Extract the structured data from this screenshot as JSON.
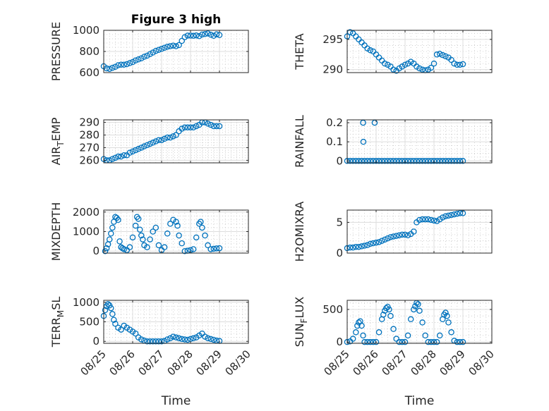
{
  "chart_data": [
    {
      "type": "scatter",
      "title": "Figure 3 high",
      "ylabel": [
        "PRESSURE"
      ],
      "xlabel": "",
      "xlim": [
        0,
        5
      ],
      "ylim": [
        600,
        1000
      ],
      "yticks": [
        600,
        800,
        1000
      ],
      "xticks": [
        0,
        1,
        2,
        3,
        4,
        5
      ],
      "xtick_labels": [],
      "grid": true,
      "color": "#0072BD",
      "series": [
        {
          "x": [
            0.0,
            0.1,
            0.2,
            0.3,
            0.4,
            0.5,
            0.6,
            0.7,
            0.8,
            0.9,
            1.0,
            1.1,
            1.2,
            1.3,
            1.4,
            1.5,
            1.6,
            1.7,
            1.8,
            1.9,
            2.0,
            2.1,
            2.2,
            2.3,
            2.4,
            2.5,
            2.6,
            2.7,
            2.8,
            2.9,
            3.0,
            3.1,
            3.2,
            3.3,
            3.4,
            3.5,
            3.6,
            3.7,
            3.8,
            3.9,
            4.0
          ],
          "y": [
            660,
            640,
            635,
            645,
            655,
            670,
            675,
            675,
            680,
            690,
            700,
            715,
            725,
            735,
            750,
            760,
            775,
            790,
            805,
            815,
            825,
            835,
            845,
            850,
            855,
            850,
            860,
            900,
            935,
            950,
            950,
            948,
            952,
            945,
            960,
            965,
            970,
            958,
            948,
            962,
            955
          ]
        }
      ]
    },
    {
      "type": "scatter",
      "title": "",
      "ylabel": [
        "THETA"
      ],
      "xlabel": "",
      "xlim": [
        0,
        5
      ],
      "ylim": [
        289.5,
        296.5
      ],
      "yticks": [
        290,
        295
      ],
      "xticks": [
        0,
        1,
        2,
        3,
        4,
        5
      ],
      "xtick_labels": [],
      "grid": true,
      "color": "#0072BD",
      "series": [
        {
          "x": [
            0.0,
            0.1,
            0.2,
            0.3,
            0.4,
            0.5,
            0.6,
            0.7,
            0.8,
            0.9,
            1.0,
            1.1,
            1.2,
            1.3,
            1.4,
            1.5,
            1.6,
            1.7,
            1.8,
            1.9,
            2.0,
            2.1,
            2.2,
            2.3,
            2.4,
            2.5,
            2.6,
            2.7,
            2.8,
            2.9,
            3.0,
            3.1,
            3.2,
            3.3,
            3.4,
            3.5,
            3.6,
            3.7,
            3.8,
            3.9,
            4.0
          ],
          "y": [
            295.5,
            296.2,
            296.0,
            295.5,
            295.0,
            294.5,
            294.0,
            293.5,
            293.2,
            293.0,
            292.5,
            292.0,
            291.5,
            291.0,
            290.8,
            290.5,
            290.0,
            289.8,
            290.2,
            290.5,
            290.8,
            291.0,
            291.3,
            291.0,
            290.5,
            290.2,
            290.0,
            289.9,
            290.0,
            290.3,
            291.0,
            292.5,
            292.6,
            292.4,
            292.2,
            292.0,
            291.6,
            291.0,
            290.8,
            290.8,
            290.9
          ]
        }
      ]
    },
    {
      "type": "scatter",
      "title": "",
      "ylabel": [
        "AIR",
        "T",
        "EMP"
      ],
      "xlabel": "",
      "xlim": [
        0,
        5
      ],
      "ylim": [
        258,
        292
      ],
      "yticks": [
        260,
        270,
        280,
        290
      ],
      "xticks": [
        0,
        1,
        2,
        3,
        4,
        5
      ],
      "xtick_labels": [],
      "grid": true,
      "color": "#0072BD",
      "series": [
        {
          "x": [
            0.0,
            0.1,
            0.2,
            0.3,
            0.4,
            0.5,
            0.6,
            0.7,
            0.8,
            0.9,
            1.0,
            1.1,
            1.2,
            1.3,
            1.4,
            1.5,
            1.6,
            1.7,
            1.8,
            1.9,
            2.0,
            2.1,
            2.2,
            2.3,
            2.4,
            2.5,
            2.6,
            2.7,
            2.8,
            2.9,
            3.0,
            3.1,
            3.2,
            3.3,
            3.4,
            3.5,
            3.6,
            3.7,
            3.8,
            3.9,
            4.0
          ],
          "y": [
            261,
            260,
            260,
            261,
            262,
            263,
            263,
            264,
            264,
            266,
            267,
            268,
            269,
            270,
            271,
            272,
            273,
            274,
            275,
            276,
            276,
            277,
            278,
            278,
            279,
            280,
            283,
            285,
            286,
            286,
            286,
            286,
            287,
            288,
            290,
            290,
            289,
            288,
            287,
            287,
            287
          ]
        }
      ]
    },
    {
      "type": "scatter",
      "title": "",
      "ylabel": [
        "RAINFALL"
      ],
      "xlabel": "",
      "xlim": [
        0,
        5
      ],
      "ylim": [
        -0.01,
        0.215
      ],
      "yticks": [
        0,
        0.1,
        0.2
      ],
      "xticks": [
        0,
        1,
        2,
        3,
        4,
        5
      ],
      "xtick_labels": [],
      "grid": true,
      "color": "#0072BD",
      "series": [
        {
          "x": [
            0.0,
            0.1,
            0.2,
            0.3,
            0.4,
            0.5,
            0.6,
            0.7,
            0.8,
            0.9,
            1.0,
            1.1,
            1.2,
            1.3,
            1.4,
            1.5,
            1.6,
            1.7,
            1.8,
            1.9,
            2.0,
            2.1,
            2.2,
            2.3,
            2.4,
            2.5,
            2.6,
            2.7,
            2.8,
            2.9,
            3.0,
            3.1,
            3.2,
            3.3,
            3.4,
            3.5,
            3.6,
            3.7,
            3.8,
            3.9,
            4.0,
            0.55,
            0.56,
            0.95
          ],
          "y": [
            0,
            0,
            0,
            0,
            0,
            0,
            0,
            0,
            0,
            0,
            0,
            0,
            0,
            0,
            0,
            0,
            0,
            0,
            0,
            0,
            0,
            0,
            0,
            0,
            0,
            0,
            0,
            0,
            0,
            0,
            0,
            0,
            0,
            0,
            0,
            0,
            0,
            0,
            0,
            0,
            0,
            0.2,
            0.1,
            0.2
          ]
        }
      ]
    },
    {
      "type": "scatter",
      "title": "",
      "ylabel": [
        "MIXDEPTH"
      ],
      "xlabel": "",
      "xlim": [
        0,
        5
      ],
      "ylim": [
        -100,
        2100
      ],
      "yticks": [
        0,
        1000,
        2000
      ],
      "xticks": [
        0,
        1,
        2,
        3,
        4,
        5
      ],
      "xtick_labels": [],
      "grid": true,
      "color": "#0072BD",
      "series": [
        {
          "x": [
            0.05,
            0.1,
            0.15,
            0.2,
            0.25,
            0.3,
            0.35,
            0.4,
            0.45,
            0.5,
            0.55,
            0.6,
            0.65,
            0.7,
            0.8,
            0.9,
            1.0,
            1.1,
            1.15,
            1.2,
            1.25,
            1.3,
            1.35,
            1.4,
            1.5,
            1.6,
            1.7,
            1.8,
            1.9,
            2.0,
            2.1,
            2.2,
            2.3,
            2.4,
            2.5,
            2.55,
            2.6,
            2.7,
            2.8,
            2.9,
            3.0,
            3.1,
            3.2,
            3.3,
            3.35,
            3.4,
            3.5,
            3.6,
            3.7,
            3.8,
            3.9,
            4.0
          ],
          "y": [
            0,
            150,
            350,
            600,
            900,
            1200,
            1500,
            1750,
            1700,
            1600,
            500,
            200,
            150,
            100,
            50,
            200,
            700,
            1300,
            1750,
            1650,
            1100,
            800,
            600,
            300,
            200,
            600,
            1000,
            1200,
            300,
            50,
            200,
            900,
            1400,
            1600,
            1500,
            1300,
            800,
            400,
            0,
            20,
            50,
            100,
            700,
            1400,
            1500,
            1200,
            800,
            300,
            100,
            120,
            140,
            150
          ]
        }
      ]
    },
    {
      "type": "scatter",
      "title": "",
      "ylabel": [
        "H2OMIXRA"
      ],
      "xlabel": "",
      "xlim": [
        0,
        5
      ],
      "ylim": [
        0,
        7
      ],
      "yticks": [
        0,
        5
      ],
      "xticks": [
        0,
        1,
        2,
        3,
        4,
        5
      ],
      "xtick_labels": [],
      "grid": true,
      "color": "#0072BD",
      "series": [
        {
          "x": [
            0.0,
            0.1,
            0.2,
            0.3,
            0.4,
            0.5,
            0.6,
            0.7,
            0.8,
            0.9,
            1.0,
            1.1,
            1.2,
            1.3,
            1.4,
            1.5,
            1.6,
            1.7,
            1.8,
            1.9,
            2.0,
            2.1,
            2.2,
            2.3,
            2.4,
            2.5,
            2.6,
            2.7,
            2.8,
            2.9,
            3.0,
            3.1,
            3.2,
            3.3,
            3.4,
            3.5,
            3.6,
            3.7,
            3.8,
            3.9,
            4.0
          ],
          "y": [
            0.8,
            0.9,
            0.9,
            1.0,
            1.0,
            1.1,
            1.2,
            1.3,
            1.5,
            1.6,
            1.7,
            1.8,
            2.0,
            2.2,
            2.4,
            2.6,
            2.7,
            2.8,
            2.9,
            3.0,
            3.0,
            2.9,
            3.1,
            3.5,
            5.0,
            5.4,
            5.5,
            5.5,
            5.5,
            5.4,
            5.3,
            5.2,
            5.5,
            5.8,
            6.0,
            6.1,
            6.2,
            6.3,
            6.4,
            6.5,
            6.5
          ]
        }
      ]
    },
    {
      "type": "scatter",
      "title": "",
      "ylabel": [
        "TERR",
        "M",
        "SL"
      ],
      "xlabel": "Time",
      "xlim": [
        0,
        5
      ],
      "ylim": [
        -50,
        1050
      ],
      "yticks": [
        0,
        500,
        1000
      ],
      "xticks": [
        0,
        1,
        2,
        3,
        4,
        5
      ],
      "xtick_labels": [
        "08/25",
        "08/26",
        "08/27",
        "08/28",
        "08/29",
        "08/30"
      ],
      "grid": true,
      "color": "#0072BD",
      "series": [
        {
          "x": [
            0.0,
            0.05,
            0.1,
            0.15,
            0.2,
            0.25,
            0.3,
            0.35,
            0.4,
            0.5,
            0.6,
            0.7,
            0.8,
            0.9,
            1.0,
            1.1,
            1.2,
            1.3,
            1.4,
            1.5,
            1.6,
            1.7,
            1.8,
            1.9,
            2.0,
            2.1,
            2.2,
            2.3,
            2.4,
            2.5,
            2.6,
            2.7,
            2.8,
            2.9,
            3.0,
            3.1,
            3.2,
            3.3,
            3.4,
            3.5,
            3.6,
            3.7,
            3.8,
            3.9,
            4.0
          ],
          "y": [
            650,
            800,
            900,
            950,
            920,
            850,
            700,
            550,
            450,
            350,
            300,
            400,
            350,
            300,
            250,
            200,
            100,
            50,
            20,
            0,
            0,
            0,
            0,
            0,
            0,
            10,
            50,
            80,
            120,
            100,
            80,
            60,
            50,
            40,
            60,
            80,
            100,
            150,
            200,
            120,
            80,
            60,
            40,
            20,
            10
          ]
        }
      ]
    },
    {
      "type": "scatter",
      "title": "",
      "ylabel": [
        "SUN",
        "F",
        "LUX"
      ],
      "xlabel": "Time",
      "xlim": [
        0,
        5
      ],
      "ylim": [
        -20,
        640
      ],
      "yticks": [
        0,
        500
      ],
      "xticks": [
        0,
        1,
        2,
        3,
        4,
        5
      ],
      "xtick_labels": [
        "08/25",
        "08/26",
        "08/27",
        "08/28",
        "08/29",
        "08/30"
      ],
      "grid": true,
      "color": "#0072BD",
      "series": [
        {
          "x": [
            0.0,
            0.1,
            0.2,
            0.3,
            0.35,
            0.4,
            0.45,
            0.5,
            0.55,
            0.6,
            0.7,
            0.8,
            0.9,
            1.0,
            1.1,
            1.2,
            1.25,
            1.3,
            1.35,
            1.4,
            1.45,
            1.5,
            1.6,
            1.7,
            1.8,
            1.9,
            2.0,
            2.1,
            2.2,
            2.3,
            2.35,
            2.4,
            2.45,
            2.5,
            2.6,
            2.7,
            2.8,
            2.9,
            3.0,
            3.1,
            3.2,
            3.3,
            3.35,
            3.4,
            3.45,
            3.5,
            3.6,
            3.7,
            3.8,
            3.9,
            4.0
          ],
          "y": [
            0,
            10,
            50,
            150,
            250,
            300,
            320,
            250,
            100,
            0,
            0,
            0,
            0,
            0,
            150,
            350,
            420,
            480,
            520,
            540,
            500,
            400,
            200,
            50,
            0,
            0,
            0,
            100,
            350,
            500,
            550,
            600,
            580,
            480,
            300,
            100,
            0,
            0,
            0,
            0,
            100,
            350,
            420,
            450,
            400,
            300,
            150,
            20,
            0,
            0,
            0
          ]
        }
      ]
    }
  ]
}
